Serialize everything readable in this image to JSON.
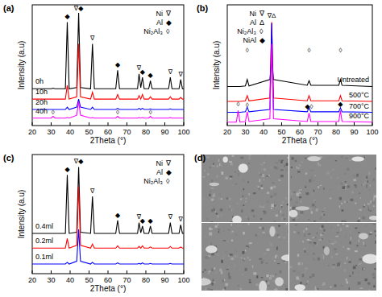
{
  "chart_data": [
    {
      "type": "line",
      "title": "(a)",
      "x_label": "2Theta (°)",
      "y_label": "Intensity (a.u)",
      "x": [
        20,
        30,
        31,
        32,
        37.5,
        38.5,
        39.5,
        43.5,
        44.5,
        45.5,
        50.8,
        51.8,
        52.8,
        64.1,
        65.1,
        66.1,
        75.6,
        76.4,
        77.3,
        78.2,
        79.1,
        81.5,
        82.4,
        83.3,
        92,
        92.9,
        93.8,
        97.5,
        98.4,
        99.3,
        100
      ],
      "xlim": [
        20,
        100
      ],
      "ylim": [
        0,
        105
      ],
      "xticks": [
        20,
        30,
        40,
        50,
        60,
        70,
        80,
        90,
        100
      ],
      "tick_labels": "x",
      "series": [
        {
          "name": "0h",
          "color": "#000000",
          "values": [
            32,
            32,
            32.5,
            32,
            32,
            90,
            32,
            33,
            98,
            33,
            32,
            71,
            32,
            32,
            48,
            32,
            32,
            45,
            33,
            42,
            32,
            32,
            39,
            32,
            32,
            42,
            32,
            32,
            40,
            32,
            32
          ]
        },
        {
          "name": "10h",
          "color": "#ff0000",
          "values": [
            23,
            23,
            23,
            23,
            23,
            35,
            23,
            25,
            71,
            25,
            23,
            29,
            23,
            23,
            27,
            23,
            23,
            26,
            23,
            27,
            23,
            23,
            25,
            23,
            23,
            25,
            23,
            23,
            24.5,
            23,
            23
          ]
        },
        {
          "name": "20h",
          "color": "#0000ff",
          "values": [
            14,
            14,
            14,
            14,
            14,
            16,
            14,
            16,
            23,
            16,
            14,
            16,
            14,
            14,
            15,
            14,
            14,
            15,
            14,
            15,
            14,
            14,
            14.5,
            14,
            14,
            14.5,
            14,
            14,
            14,
            14,
            14
          ]
        },
        {
          "name": "40h",
          "color": "#ff00ff",
          "values": [
            6.5,
            6.5,
            8,
            6.5,
            6.5,
            7,
            6.5,
            9,
            21,
            9,
            6.5,
            7,
            6.5,
            6.5,
            8,
            6.5,
            6.5,
            7,
            6.5,
            7,
            6.5,
            6.5,
            8,
            6.5,
            6.5,
            7,
            6.5,
            6.5,
            6.5,
            6.5,
            6.5
          ]
        }
      ],
      "annotations": [
        {
          "x": 38.5,
          "y": 93,
          "text": "◆"
        },
        {
          "x": 44.5,
          "y": 100,
          "text": "∇◆"
        },
        {
          "x": 51.8,
          "y": 74,
          "text": "∇"
        },
        {
          "x": 65.1,
          "y": 51,
          "text": "◆"
        },
        {
          "x": 76.4,
          "y": 48,
          "text": "∇"
        },
        {
          "x": 78.2,
          "y": 45,
          "text": "◆"
        },
        {
          "x": 82.4,
          "y": 42,
          "text": "◆"
        },
        {
          "x": 92.9,
          "y": 45,
          "text": "∇"
        },
        {
          "x": 98.4,
          "y": 43,
          "text": "∇"
        },
        {
          "x": 31,
          "y": 10,
          "text": "◊"
        },
        {
          "x": 65.1,
          "y": 10,
          "text": "◊"
        },
        {
          "x": 82.4,
          "y": 10,
          "text": "◊"
        }
      ],
      "phase_key": [
        {
          "name": "Ni",
          "symbol": "∇"
        },
        {
          "name": "Al",
          "symbol": "◆"
        },
        {
          "name": "Ni₂Al₃",
          "symbol": "◊"
        }
      ]
    },
    {
      "type": "line",
      "title": "(b)",
      "x_label": "2Theta (°)",
      "y_label": "Intensity (a.u)",
      "x": [
        20,
        25,
        26,
        27,
        30,
        31,
        32,
        43.5,
        44.5,
        45.5,
        64.1,
        65.1,
        66.1,
        81.5,
        82.4,
        83.3,
        100
      ],
      "xlim": [
        20,
        100
      ],
      "ylim": [
        0,
        105
      ],
      "xticks": [
        20,
        30,
        40,
        50,
        60,
        70,
        80,
        90,
        100
      ],
      "tick_labels": "x",
      "series": [
        {
          "name": "Untreated",
          "color": "#000000",
          "values": [
            34,
            34,
            34,
            34,
            34.5,
            40,
            34.5,
            40,
            58,
            40,
            35,
            39,
            35,
            35,
            40,
            35,
            34
          ]
        },
        {
          "name": "500°C",
          "color": "#ff0000",
          "values": [
            21,
            21,
            21,
            21,
            21.5,
            26,
            21.5,
            24,
            90,
            24,
            21.5,
            26,
            21.5,
            21.5,
            26,
            21.5,
            21
          ]
        },
        {
          "name": "700°C",
          "color": "#0000ff",
          "values": [
            11.5,
            11.5,
            11.5,
            11.5,
            12,
            16,
            12,
            14,
            89,
            14,
            12,
            15.5,
            12,
            12,
            15.5,
            12,
            11.5
          ]
        },
        {
          "name": "900°C",
          "color": "#ff00ff",
          "values": [
            3,
            3,
            13,
            3,
            3.5,
            12,
            3.5,
            6,
            71,
            6,
            3.5,
            11,
            3.5,
            3.5,
            13,
            3.5,
            3
          ]
        }
      ],
      "annotations": [
        {
          "x": 44.5,
          "y": 94,
          "text": "∇Δ"
        },
        {
          "x": 31,
          "y": 64,
          "text": "◊"
        },
        {
          "x": 65.1,
          "y": 64,
          "text": "◊"
        },
        {
          "x": 82.4,
          "y": 64,
          "text": "◊"
        },
        {
          "x": 26,
          "y": 17,
          "text": "◊"
        },
        {
          "x": 31,
          "y": 16,
          "text": "◊"
        },
        {
          "x": 65.1,
          "y": 15,
          "text": "◆◊"
        },
        {
          "x": 82.4,
          "y": 17,
          "text": "◆"
        }
      ],
      "phase_key": [
        {
          "name": "Ni",
          "symbol": "∇"
        },
        {
          "name": "Al",
          "symbol": "Δ"
        },
        {
          "name": "Ni₂Al₃",
          "symbol": "◊"
        },
        {
          "name": "NiAl",
          "symbol": "◆"
        }
      ]
    },
    {
      "type": "line",
      "title": "(c)",
      "x_label": "2Theta (°)",
      "y_label": "Intensity (a.u)",
      "x": [
        20,
        30,
        31,
        32,
        37.5,
        38.5,
        39.5,
        43.5,
        44.5,
        45.5,
        50.8,
        51.8,
        52.8,
        64.1,
        65.1,
        66.1,
        75.6,
        76.4,
        77.3,
        78.2,
        79.1,
        81.5,
        82.4,
        83.3,
        92,
        92.9,
        93.8,
        97.5,
        98.4,
        99.3,
        100
      ],
      "xlim": [
        20,
        100
      ],
      "ylim": [
        0,
        105
      ],
      "xticks": [
        20,
        30,
        40,
        50,
        60,
        70,
        80,
        90,
        100
      ],
      "tick_labels": "x",
      "series": [
        {
          "name": "0.4ml",
          "color": "#000000",
          "values": [
            35.5,
            35.5,
            35.5,
            35.5,
            35.5,
            87,
            35.5,
            36.5,
            94,
            36.5,
            35.5,
            68,
            35.5,
            35.5,
            47,
            35.5,
            35.5,
            45,
            36,
            42,
            35.5,
            35.5,
            42,
            35.5,
            35.5,
            45,
            35.5,
            35.5,
            43,
            35.5,
            35.5
          ]
        },
        {
          "name": "0.2ml",
          "color": "#ff0000",
          "values": [
            22.5,
            22.5,
            22.5,
            22.5,
            22.5,
            31,
            22.5,
            25,
            77,
            25,
            22.5,
            26,
            22.5,
            22.5,
            24.5,
            22.5,
            22.5,
            24,
            22.5,
            24.5,
            22.5,
            22.5,
            23.5,
            22.5,
            22.5,
            24,
            22.5,
            22.5,
            23.5,
            22.5,
            22.5
          ]
        },
        {
          "name": "0.1ml",
          "color": "#0000ff",
          "values": [
            8.5,
            8.5,
            8.5,
            8.5,
            8.5,
            10,
            8.5,
            11,
            39,
            11,
            8.5,
            10,
            8.5,
            8.5,
            9.5,
            8.5,
            8.5,
            9,
            8.5,
            9.5,
            8.5,
            8.5,
            9,
            8.5,
            8.5,
            9,
            8.5,
            8.5,
            8.5,
            8.5,
            8.5
          ]
        }
      ],
      "annotations": [
        {
          "x": 38.5,
          "y": 90,
          "text": "◆"
        },
        {
          "x": 44.5,
          "y": 97,
          "text": "∇◆"
        },
        {
          "x": 51.8,
          "y": 71,
          "text": "∇"
        },
        {
          "x": 65.1,
          "y": 50,
          "text": "◆"
        },
        {
          "x": 76.4,
          "y": 48,
          "text": "∇"
        },
        {
          "x": 78.2,
          "y": 45,
          "text": "◆"
        },
        {
          "x": 82.4,
          "y": 45,
          "text": "◆"
        },
        {
          "x": 92.9,
          "y": 48,
          "text": "∇"
        },
        {
          "x": 98.4,
          "y": 46,
          "text": "∇"
        }
      ],
      "phase_key": [
        {
          "name": "Ni",
          "symbol": "∇"
        },
        {
          "name": "Al",
          "symbol": "◆"
        },
        {
          "name": "Ni₂Al₃",
          "symbol": "◊"
        }
      ]
    },
    {
      "type": "image",
      "title": "(d)"
    }
  ]
}
